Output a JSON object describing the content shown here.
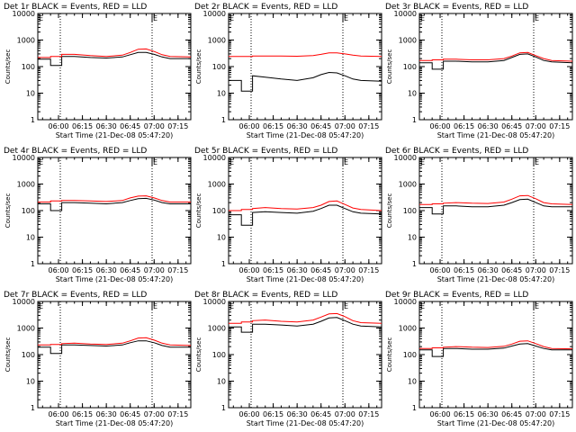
{
  "time_ticks": [
    "06:00",
    "06:15",
    "06:30",
    "06:45",
    "07:00",
    "07:15"
  ],
  "y_ticks": [
    "1",
    "10",
    "100",
    "1000",
    "10000"
  ],
  "ylabel": "Counts/sec",
  "xlabel": "Start Time (21-Dec-08 05:47:20)",
  "corner_mark": "E",
  "colors": {
    "events": "#000000",
    "lld": "#ff0000"
  },
  "chart_data": [
    {
      "type": "line",
      "title": "Det 1r BLACK = Events, RED = LLD",
      "xlabel": "Start Time (21-Dec-08 05:47:20)",
      "ylabel": "Counts/sec",
      "yscale": "log",
      "ylim": [
        1,
        10000
      ],
      "xlim": [
        "05:47",
        "07:23"
      ],
      "x": [
        "05:47",
        "05:55",
        "06:02",
        "06:10",
        "06:20",
        "06:30",
        "06:40",
        "06:45",
        "06:50",
        "06:55",
        "07:00",
        "07:05",
        "07:10",
        "07:23"
      ],
      "series": [
        {
          "name": "BLACK = Events",
          "color": "#000000",
          "values": [
            190,
            110,
            240,
            240,
            220,
            210,
            230,
            280,
            340,
            340,
            290,
            230,
            200,
            200
          ]
        },
        {
          "name": "RED = LLD",
          "color": "#ff0000",
          "values": [
            220,
            240,
            290,
            290,
            260,
            240,
            270,
            340,
            450,
            460,
            370,
            280,
            240,
            230
          ]
        }
      ]
    },
    {
      "type": "line",
      "title": "Det 2r BLACK = Events, RED = LLD",
      "xlabel": "Start Time (21-Dec-08 05:47:20)",
      "ylabel": "Counts/sec",
      "yscale": "log",
      "ylim": [
        1,
        10000
      ],
      "xlim": [
        "05:47",
        "07:23"
      ],
      "x": [
        "05:47",
        "05:55",
        "06:02",
        "06:10",
        "06:20",
        "06:30",
        "06:40",
        "06:45",
        "06:50",
        "06:55",
        "07:00",
        "07:05",
        "07:10",
        "07:23"
      ],
      "series": [
        {
          "name": "BLACK = Events",
          "color": "#000000",
          "values": [
            30,
            12,
            45,
            40,
            34,
            30,
            38,
            50,
            60,
            58,
            45,
            34,
            30,
            28
          ]
        },
        {
          "name": "RED = LLD",
          "color": "#ff0000",
          "values": [
            240,
            240,
            250,
            250,
            250,
            245,
            260,
            290,
            330,
            330,
            300,
            270,
            250,
            240
          ]
        }
      ]
    },
    {
      "type": "line",
      "title": "Det 3r BLACK = Events, RED = LLD",
      "xlabel": "Start Time (21-Dec-08 05:47:20)",
      "ylabel": "Counts/sec",
      "yscale": "log",
      "ylim": [
        1,
        10000
      ],
      "xlim": [
        "05:47",
        "07:23"
      ],
      "x": [
        "05:47",
        "05:55",
        "06:02",
        "06:10",
        "06:20",
        "06:30",
        "06:40",
        "06:45",
        "06:50",
        "06:55",
        "07:00",
        "07:05",
        "07:10",
        "07:23"
      ],
      "series": [
        {
          "name": "BLACK = Events",
          "color": "#000000",
          "values": [
            140,
            80,
            160,
            160,
            150,
            150,
            170,
            220,
            290,
            300,
            230,
            170,
            150,
            140
          ]
        },
        {
          "name": "RED = LLD",
          "color": "#ff0000",
          "values": [
            170,
            180,
            190,
            190,
            180,
            180,
            200,
            250,
            330,
            340,
            260,
            200,
            170,
            160
          ]
        }
      ]
    },
    {
      "type": "line",
      "title": "Det 4r BLACK = Events, RED = LLD",
      "xlabel": "Start Time (21-Dec-08 05:47:20)",
      "ylabel": "Counts/sec",
      "yscale": "log",
      "ylim": [
        1,
        10000
      ],
      "xlim": [
        "05:47",
        "07:23"
      ],
      "x": [
        "05:47",
        "05:55",
        "06:02",
        "06:10",
        "06:20",
        "06:30",
        "06:40",
        "06:45",
        "06:50",
        "06:55",
        "07:00",
        "07:05",
        "07:10",
        "07:23"
      ],
      "series": [
        {
          "name": "BLACK = Events",
          "color": "#000000",
          "values": [
            180,
            100,
            200,
            200,
            190,
            180,
            200,
            240,
            280,
            290,
            250,
            200,
            180,
            180
          ]
        },
        {
          "name": "RED = LLD",
          "color": "#ff0000",
          "values": [
            210,
            230,
            240,
            240,
            230,
            220,
            240,
            300,
            350,
            360,
            300,
            240,
            210,
            210
          ]
        }
      ]
    },
    {
      "type": "line",
      "title": "Det 5r BLACK = Events, RED = LLD",
      "xlabel": "Start Time (21-Dec-08 05:47:20)",
      "ylabel": "Counts/sec",
      "yscale": "log",
      "ylim": [
        1,
        10000
      ],
      "xlim": [
        "05:47",
        "07:23"
      ],
      "x": [
        "05:47",
        "05:55",
        "06:02",
        "06:10",
        "06:20",
        "06:30",
        "06:40",
        "06:45",
        "06:50",
        "06:55",
        "07:00",
        "07:05",
        "07:10",
        "07:23"
      ],
      "series": [
        {
          "name": "BLACK = Events",
          "color": "#000000",
          "values": [
            70,
            28,
            85,
            90,
            85,
            80,
            95,
            120,
            160,
            160,
            120,
            90,
            80,
            75
          ]
        },
        {
          "name": "RED = LLD",
          "color": "#ff0000",
          "values": [
            100,
            110,
            120,
            130,
            120,
            115,
            130,
            160,
            220,
            230,
            170,
            125,
            110,
            100
          ]
        }
      ]
    },
    {
      "type": "line",
      "title": "Det 6r BLACK = Events, RED = LLD",
      "xlabel": "Start Time (21-Dec-08 05:47:20)",
      "ylabel": "Counts/sec",
      "yscale": "log",
      "ylim": [
        1,
        10000
      ],
      "xlim": [
        "05:47",
        "07:23"
      ],
      "x": [
        "05:47",
        "05:55",
        "06:02",
        "06:10",
        "06:20",
        "06:30",
        "06:40",
        "06:45",
        "06:50",
        "06:55",
        "07:00",
        "07:05",
        "07:10",
        "07:23"
      ],
      "series": [
        {
          "name": "BLACK = Events",
          "color": "#000000",
          "values": [
            130,
            75,
            150,
            150,
            140,
            140,
            160,
            200,
            260,
            270,
            200,
            150,
            140,
            140
          ]
        },
        {
          "name": "RED = LLD",
          "color": "#ff0000",
          "values": [
            170,
            180,
            190,
            200,
            190,
            185,
            210,
            270,
            360,
            370,
            280,
            200,
            180,
            170
          ]
        }
      ]
    },
    {
      "type": "line",
      "title": "Det 7r BLACK = Events, RED = LLD",
      "xlabel": "Start Time (21-Dec-08 05:47:20)",
      "ylabel": "Counts/sec",
      "yscale": "log",
      "ylim": [
        1,
        10000
      ],
      "xlim": [
        "05:47",
        "07:23"
      ],
      "x": [
        "05:47",
        "05:55",
        "06:02",
        "06:10",
        "06:20",
        "06:30",
        "06:40",
        "06:45",
        "06:50",
        "06:55",
        "07:00",
        "07:05",
        "07:10",
        "07:23"
      ],
      "series": [
        {
          "name": "BLACK = Events",
          "color": "#000000",
          "values": [
            190,
            110,
            230,
            230,
            220,
            210,
            230,
            280,
            330,
            330,
            280,
            220,
            190,
            190
          ]
        },
        {
          "name": "RED = LLD",
          "color": "#ff0000",
          "values": [
            230,
            240,
            260,
            270,
            250,
            240,
            270,
            330,
            420,
            430,
            350,
            270,
            230,
            220
          ]
        }
      ]
    },
    {
      "type": "line",
      "title": "Det 8r BLACK = Events, RED = LLD",
      "xlabel": "Start Time (21-Dec-08 05:47:20)",
      "ylabel": "Counts/sec",
      "yscale": "log",
      "ylim": [
        1,
        10000
      ],
      "xlim": [
        "05:47",
        "07:23"
      ],
      "x": [
        "05:47",
        "05:55",
        "06:02",
        "06:10",
        "06:20",
        "06:30",
        "06:40",
        "06:45",
        "06:50",
        "06:55",
        "07:00",
        "07:05",
        "07:10",
        "07:23"
      ],
      "series": [
        {
          "name": "BLACK = Events",
          "color": "#000000",
          "values": [
            1100,
            700,
            1400,
            1400,
            1300,
            1200,
            1400,
            1800,
            2400,
            2500,
            1900,
            1400,
            1200,
            1100
          ]
        },
        {
          "name": "RED = LLD",
          "color": "#ff0000",
          "values": [
            1500,
            1700,
            1900,
            2000,
            1800,
            1700,
            2000,
            2600,
            3400,
            3500,
            2700,
            1900,
            1600,
            1500
          ]
        }
      ]
    },
    {
      "type": "line",
      "title": "Det 9r BLACK = Events, RED = LLD",
      "xlabel": "Start Time (21-Dec-08 05:47:20)",
      "ylabel": "Counts/sec",
      "yscale": "log",
      "ylim": [
        1,
        10000
      ],
      "xlim": [
        "05:47",
        "07:23"
      ],
      "x": [
        "05:47",
        "05:55",
        "06:02",
        "06:10",
        "06:20",
        "06:30",
        "06:40",
        "06:45",
        "06:50",
        "06:55",
        "07:00",
        "07:05",
        "07:10",
        "07:23"
      ],
      "series": [
        {
          "name": "BLACK = Events",
          "color": "#000000",
          "values": [
            150,
            85,
            170,
            170,
            160,
            160,
            175,
            210,
            250,
            260,
            210,
            170,
            150,
            150
          ]
        },
        {
          "name": "RED = LLD",
          "color": "#ff0000",
          "values": [
            170,
            180,
            190,
            200,
            190,
            185,
            205,
            250,
            320,
            330,
            260,
            200,
            170,
            165
          ]
        }
      ]
    }
  ]
}
